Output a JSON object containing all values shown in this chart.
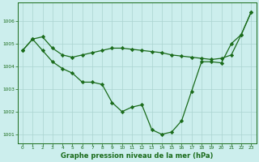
{
  "line1_x": [
    0,
    1,
    2,
    3,
    4,
    5,
    6,
    7,
    8,
    9,
    10,
    11,
    12,
    13,
    14,
    15,
    16,
    17,
    18,
    19,
    20,
    21,
    22,
    23
  ],
  "line1_y": [
    1004.7,
    1005.2,
    1005.3,
    1004.8,
    1004.5,
    1004.4,
    1004.5,
    1004.6,
    1004.7,
    1004.8,
    1004.8,
    1004.75,
    1004.7,
    1004.65,
    1004.6,
    1004.5,
    1004.45,
    1004.4,
    1004.35,
    1004.3,
    1004.35,
    1004.5,
    1005.4,
    1006.4
  ],
  "line2_x": [
    0,
    1,
    2,
    3,
    4,
    5,
    6,
    7,
    8,
    9,
    10,
    11,
    12,
    13,
    14,
    15,
    16,
    17,
    18,
    19,
    20,
    21,
    22,
    23
  ],
  "line2_y": [
    1004.7,
    1005.2,
    1004.7,
    1004.2,
    1003.9,
    1003.7,
    1003.3,
    1003.3,
    1003.2,
    1002.4,
    1002.0,
    1002.2,
    1002.3,
    1001.2,
    1001.0,
    1001.1,
    1001.6,
    1002.9,
    1004.2,
    1004.2,
    1004.15,
    1005.0,
    1005.4,
    1006.4
  ],
  "line_color": "#1a6b1a",
  "bg_color": "#cceeed",
  "grid_color": "#aad4d0",
  "xlabel": "Graphe pression niveau de la mer (hPa)",
  "xlim": [
    -0.5,
    23.5
  ],
  "ylim": [
    1000.6,
    1006.8
  ],
  "yticks": [
    1001,
    1002,
    1003,
    1004,
    1005,
    1006
  ],
  "xticks": [
    0,
    1,
    2,
    3,
    4,
    5,
    6,
    7,
    8,
    9,
    10,
    11,
    12,
    13,
    14,
    15,
    16,
    17,
    18,
    19,
    20,
    21,
    22,
    23
  ],
  "xlabel_fontsize": 6.0,
  "tick_fontsize": 4.2,
  "linewidth": 0.9,
  "markersize": 2.2
}
